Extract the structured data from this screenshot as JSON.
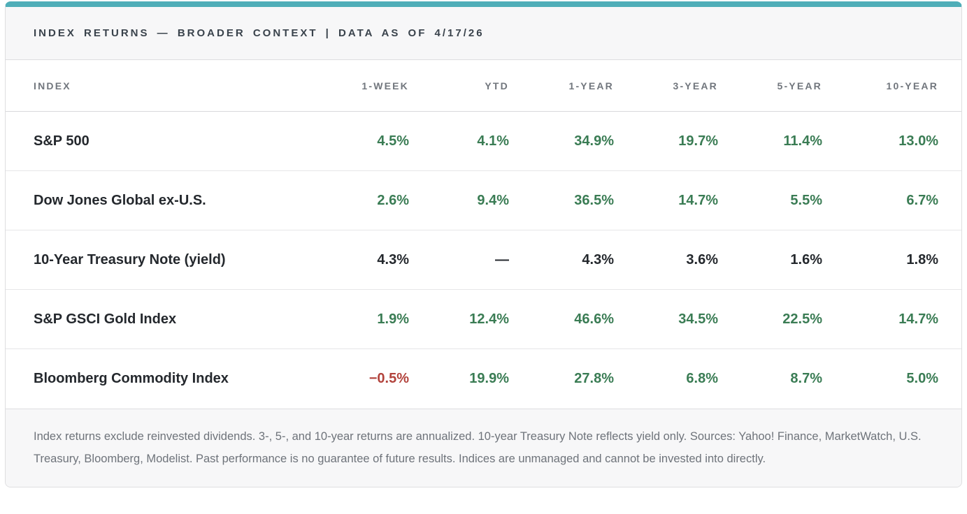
{
  "accent_colors": {
    "teal_bar": "#4FAEB8",
    "positive_green": "#3A7C54",
    "negative_red": "#B2433C",
    "neutral_dark": "#24282D"
  },
  "header": {
    "title": "INDEX RETURNS — BROADER CONTEXT | DATA AS OF 4/17/26"
  },
  "table": {
    "columns": [
      "INDEX",
      "1-WEEK",
      "YTD",
      "1-YEAR",
      "3-YEAR",
      "5-YEAR",
      "10-YEAR"
    ],
    "rows": [
      {
        "index": "S&P 500",
        "values": [
          "4.5%",
          "4.1%",
          "34.9%",
          "19.7%",
          "11.4%",
          "13.0%"
        ],
        "tones": [
          "pos",
          "pos",
          "pos",
          "pos",
          "pos",
          "pos"
        ]
      },
      {
        "index": "Dow Jones Global ex-U.S.",
        "values": [
          "2.6%",
          "9.4%",
          "36.5%",
          "14.7%",
          "5.5%",
          "6.7%"
        ],
        "tones": [
          "pos",
          "pos",
          "pos",
          "pos",
          "pos",
          "pos"
        ]
      },
      {
        "index": "10-Year Treasury Note (yield)",
        "values": [
          "4.3%",
          "—",
          "4.3%",
          "3.6%",
          "1.6%",
          "1.8%"
        ],
        "tones": [
          "neu",
          "neu",
          "neu",
          "neu",
          "neu",
          "neu"
        ]
      },
      {
        "index": "S&P GSCI Gold Index",
        "values": [
          "1.9%",
          "12.4%",
          "46.6%",
          "34.5%",
          "22.5%",
          "14.7%"
        ],
        "tones": [
          "pos",
          "pos",
          "pos",
          "pos",
          "pos",
          "pos"
        ]
      },
      {
        "index": "Bloomberg Commodity Index",
        "values": [
          "−0.5%",
          "19.9%",
          "27.8%",
          "6.8%",
          "8.7%",
          "5.0%"
        ],
        "tones": [
          "neg",
          "pos",
          "pos",
          "pos",
          "pos",
          "pos"
        ]
      }
    ]
  },
  "footer": {
    "note": "Index returns exclude reinvested dividends. 3-, 5-, and 10-year returns are annualized. 10-year Treasury Note reflects yield only. Sources: Yahoo! Finance, MarketWatch, U.S. Treasury, Bloomberg, Modelist. Past performance is no guarantee of future results. Indices are unmanaged and cannot be invested into directly."
  },
  "chart_data": {
    "type": "table",
    "title": "INDEX RETURNS — BROADER CONTEXT | DATA AS OF 4/17/26",
    "columns": [
      "INDEX",
      "1-WEEK",
      "YTD",
      "1-YEAR",
      "3-YEAR",
      "5-YEAR",
      "10-YEAR"
    ],
    "rows": [
      {
        "index": "S&P 500",
        "week_1": 4.5,
        "ytd": 4.1,
        "year_1": 34.9,
        "year_3": 19.7,
        "year_5": 11.4,
        "year_10": 13.0
      },
      {
        "index": "Dow Jones Global ex-U.S.",
        "week_1": 2.6,
        "ytd": 9.4,
        "year_1": 36.5,
        "year_3": 14.7,
        "year_5": 5.5,
        "year_10": 6.7
      },
      {
        "index": "10-Year Treasury Note (yield)",
        "week_1": 4.3,
        "ytd": null,
        "year_1": 4.3,
        "year_3": 3.6,
        "year_5": 1.6,
        "year_10": 1.8
      },
      {
        "index": "S&P GSCI Gold Index",
        "week_1": 1.9,
        "ytd": 12.4,
        "year_1": 46.6,
        "year_3": 34.5,
        "year_5": 22.5,
        "year_10": 14.7
      },
      {
        "index": "Bloomberg Commodity Index",
        "week_1": -0.5,
        "ytd": 19.9,
        "year_1": 27.8,
        "year_3": 6.8,
        "year_5": 8.7,
        "year_10": 5.0
      }
    ],
    "units": "percent",
    "notes": "Values colored green when positive, red when negative, black for yield-only row."
  }
}
